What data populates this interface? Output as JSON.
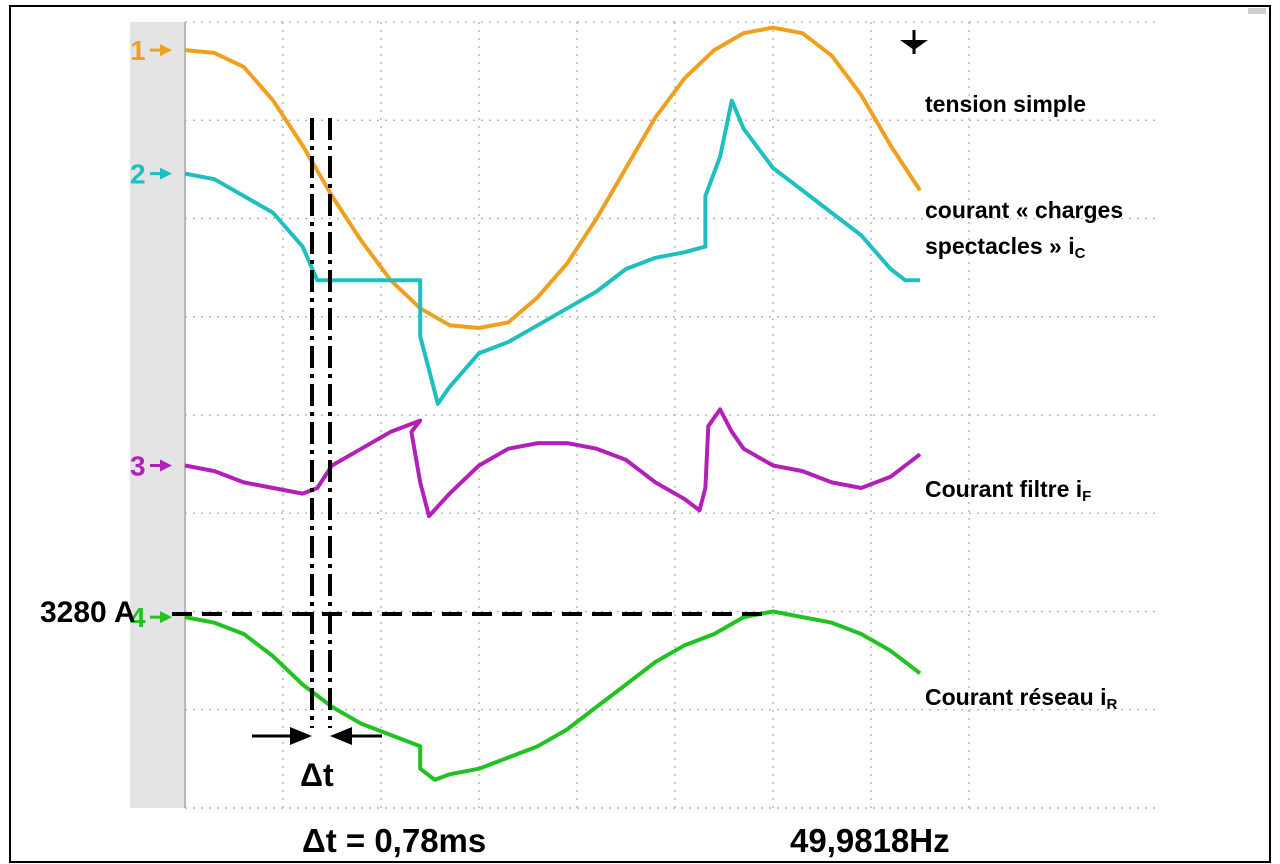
{
  "chart_data": {
    "type": "line",
    "title": "",
    "xlabel": "",
    "ylabel": "",
    "grid": true,
    "series": [
      {
        "name": "tension simple",
        "marker": "1",
        "color": "#f0a020",
        "points": [
          [
            0,
            -5
          ],
          [
            1,
            -5.5
          ],
          [
            2,
            -8
          ],
          [
            3,
            -14
          ],
          [
            4,
            -22
          ],
          [
            5,
            -31
          ],
          [
            6,
            -39
          ],
          [
            7,
            -46
          ],
          [
            8,
            -51
          ],
          [
            9,
            -54
          ],
          [
            10,
            -54.5
          ],
          [
            11,
            -53.5
          ],
          [
            12,
            -49
          ],
          [
            13,
            -43
          ],
          [
            14,
            -35
          ],
          [
            15,
            -26
          ],
          [
            16,
            -17
          ],
          [
            17,
            -10
          ],
          [
            18,
            -5
          ],
          [
            19,
            -2
          ],
          [
            20,
            -1
          ],
          [
            21,
            -2
          ],
          [
            22,
            -6
          ],
          [
            23,
            -13
          ],
          [
            24,
            -22
          ],
          [
            25,
            -30
          ]
        ]
      },
      {
        "name": "courant « charges spectacles » iC",
        "marker": "2",
        "color": "#1fbfc0",
        "points": [
          [
            0,
            -27
          ],
          [
            1,
            -28
          ],
          [
            2,
            -31
          ],
          [
            3,
            -34
          ],
          [
            4,
            -40
          ],
          [
            4.5,
            -46
          ],
          [
            5,
            -46
          ],
          [
            6,
            -46
          ],
          [
            7,
            -46
          ],
          [
            8,
            -46
          ],
          [
            8,
            -56
          ],
          [
            8.4,
            -64
          ],
          [
            8.6,
            -68
          ],
          [
            9,
            -65
          ],
          [
            10,
            -59
          ],
          [
            11,
            -57
          ],
          [
            12,
            -54
          ],
          [
            13,
            -51
          ],
          [
            14,
            -48
          ],
          [
            15,
            -44
          ],
          [
            16,
            -42
          ],
          [
            17,
            -41
          ],
          [
            17.7,
            -40
          ],
          [
            17.7,
            -31
          ],
          [
            18.2,
            -24
          ],
          [
            18.6,
            -14
          ],
          [
            19,
            -19
          ],
          [
            20,
            -26
          ],
          [
            21,
            -30
          ],
          [
            22,
            -34
          ],
          [
            23,
            -38
          ],
          [
            24,
            -44
          ],
          [
            24.5,
            -46
          ],
          [
            25,
            -46
          ]
        ]
      },
      {
        "name": "Courant filtre iF",
        "marker": "3",
        "color": "#b220b8",
        "points": [
          [
            0,
            -79
          ],
          [
            1,
            -80
          ],
          [
            2,
            -82
          ],
          [
            3,
            -83
          ],
          [
            4,
            -84
          ],
          [
            4.5,
            -83
          ],
          [
            5,
            -79
          ],
          [
            6,
            -76
          ],
          [
            7,
            -73
          ],
          [
            8,
            -71
          ],
          [
            7.7,
            -73
          ],
          [
            8,
            -82
          ],
          [
            8.3,
            -88
          ],
          [
            9,
            -84
          ],
          [
            10,
            -79
          ],
          [
            11,
            -76
          ],
          [
            12,
            -75
          ],
          [
            13,
            -75
          ],
          [
            14,
            -76
          ],
          [
            15,
            -78
          ],
          [
            16,
            -82
          ],
          [
            17,
            -85
          ],
          [
            17.5,
            -87
          ],
          [
            17.7,
            -83
          ],
          [
            17.8,
            -72
          ],
          [
            18.2,
            -69
          ],
          [
            18.6,
            -73
          ],
          [
            19,
            -76
          ],
          [
            20,
            -79
          ],
          [
            21,
            -80
          ],
          [
            22,
            -82
          ],
          [
            23,
            -83
          ],
          [
            24,
            -81
          ],
          [
            25,
            -77
          ]
        ]
      },
      {
        "name": "Courant réseau iR",
        "marker": "4",
        "color": "#22c222",
        "points": [
          [
            0,
            -106
          ],
          [
            1,
            -107
          ],
          [
            2,
            -109
          ],
          [
            3,
            -113
          ],
          [
            4,
            -118
          ],
          [
            5,
            -122
          ],
          [
            6,
            -125
          ],
          [
            7,
            -127
          ],
          [
            8,
            -129
          ],
          [
            8,
            -133
          ],
          [
            8.5,
            -135
          ],
          [
            9,
            -134
          ],
          [
            10,
            -133
          ],
          [
            11,
            -131
          ],
          [
            12,
            -129
          ],
          [
            13,
            -126
          ],
          [
            14,
            -122
          ],
          [
            15,
            -118
          ],
          [
            16,
            -114
          ],
          [
            17,
            -111
          ],
          [
            18,
            -109
          ],
          [
            19,
            -106
          ],
          [
            20,
            -105
          ],
          [
            21,
            -106
          ],
          [
            22,
            -107
          ],
          [
            23,
            -109
          ],
          [
            24,
            -112
          ],
          [
            25,
            -116
          ]
        ]
      }
    ],
    "annotations": {
      "reference_label": "3280 A",
      "delta_t_symbol": "Δt",
      "delta_t_text": "Δt = 0,78ms",
      "frequency_text": "49,9818Hz"
    }
  },
  "labels": {
    "tension": "tension simple",
    "courant_c_line1": "courant « charges",
    "courant_c_line2": "spectacles » i",
    "courant_c_sub": "C",
    "filtre": "Courant filtre i",
    "filtre_sub": "F",
    "reseau": "Courant réseau i",
    "reseau_sub": "R"
  }
}
